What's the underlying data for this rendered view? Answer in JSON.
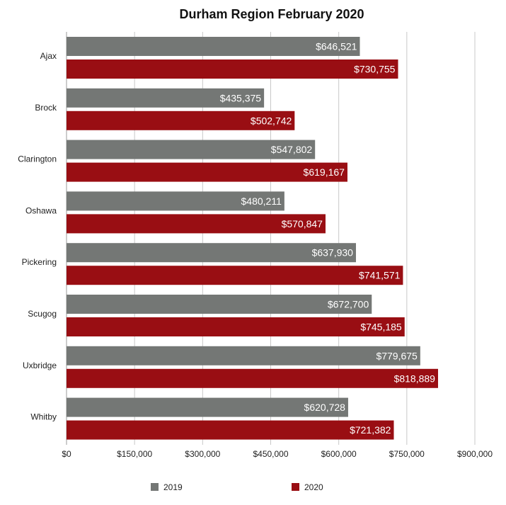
{
  "chart_data": {
    "type": "bar",
    "orientation": "horizontal",
    "title": "Durham Region February 2020",
    "categories": [
      "Ajax",
      "Brock",
      "Clarington",
      "Oshawa",
      "Pickering",
      "Scugog",
      "Uxbridge",
      "Whitby"
    ],
    "series": [
      {
        "name": "2019",
        "color": "#747775",
        "values": [
          646521,
          435375,
          547802,
          480211,
          637930,
          672700,
          779675,
          620728
        ],
        "labels": [
          "$646,521",
          "$435,375",
          "$547,802",
          "$480,211",
          "$637,930",
          "$672,700",
          "$779,675",
          "$620,728"
        ]
      },
      {
        "name": "2020",
        "color": "#990e13",
        "values": [
          730755,
          502742,
          619167,
          570847,
          741571,
          745185,
          818889,
          721382
        ],
        "labels": [
          "$730,755",
          "$502,742",
          "$619,167",
          "$570,847",
          "$741,571",
          "$745,185",
          "$818,889",
          "$721,382"
        ]
      }
    ],
    "xlim": [
      0,
      900000
    ],
    "xticks": [
      0,
      150000,
      300000,
      450000,
      600000,
      750000,
      900000
    ],
    "xtick_labels": [
      "$0",
      "$150,000",
      "$300,000",
      "$450,000",
      "$600,000",
      "$750,000",
      "$900,000"
    ],
    "grid": true,
    "legend_position": "bottom"
  }
}
